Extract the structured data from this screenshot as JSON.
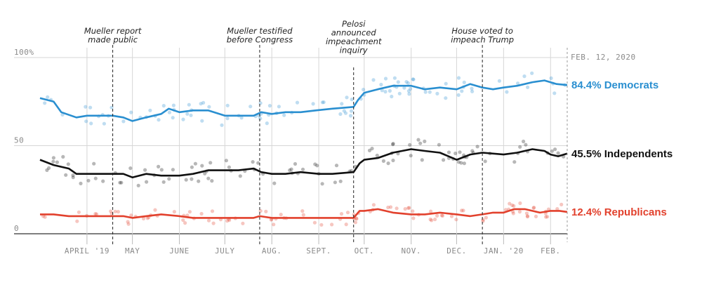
{
  "chart_data": {
    "type": "line",
    "x_range": [
      "2019-03-01",
      "2020-02-12"
    ],
    "y_range": [
      0,
      100
    ],
    "y_ticks": [
      {
        "value": 100,
        "label": "100%"
      },
      {
        "value": 50,
        "label": "50"
      },
      {
        "value": 0,
        "label": "0"
      }
    ],
    "x_ticks": [
      {
        "date": "2019-04-01",
        "label": "APRIL '19"
      },
      {
        "date": "2019-05-01",
        "label": "MAY"
      },
      {
        "date": "2019-06-01",
        "label": "JUNE"
      },
      {
        "date": "2019-07-01",
        "label": "JULY"
      },
      {
        "date": "2019-08-01",
        "label": "AUG."
      },
      {
        "date": "2019-09-01",
        "label": "SEPT."
      },
      {
        "date": "2019-10-01",
        "label": "OCT."
      },
      {
        "date": "2019-11-01",
        "label": "NOV."
      },
      {
        "date": "2019-12-01",
        "label": "DEC."
      },
      {
        "date": "2020-01-01",
        "label": "JAN. '20"
      },
      {
        "date": "2020-02-01",
        "label": "FEB."
      }
    ],
    "date_label": {
      "date": "2020-02-12",
      "label": "FEB. 12, 2020"
    },
    "grid": true,
    "annotations": [
      {
        "date": "2019-04-18",
        "lines": [
          "Mueller report",
          "made public"
        ]
      },
      {
        "date": "2019-07-24",
        "lines": [
          "Mueller testified",
          "before Congress"
        ]
      },
      {
        "date": "2019-09-24",
        "lines": [
          "Pelosi",
          "announced",
          "impeachment",
          "inquiry"
        ]
      },
      {
        "date": "2019-12-18",
        "lines": [
          "House voted to",
          "impeach Trump"
        ]
      }
    ],
    "series": [
      {
        "name": "Democrats",
        "color": "#2a8fd0",
        "label": "84.4% Democrats",
        "points": [
          [
            "2019-03-01",
            77
          ],
          [
            "2019-03-10",
            75
          ],
          [
            "2019-03-15",
            69
          ],
          [
            "2019-03-25",
            66
          ],
          [
            "2019-04-01",
            67
          ],
          [
            "2019-04-18",
            67
          ],
          [
            "2019-04-25",
            66
          ],
          [
            "2019-05-01",
            64
          ],
          [
            "2019-05-10",
            66
          ],
          [
            "2019-05-20",
            68
          ],
          [
            "2019-05-25",
            71
          ],
          [
            "2019-06-01",
            69
          ],
          [
            "2019-06-10",
            70
          ],
          [
            "2019-06-20",
            70
          ],
          [
            "2019-07-01",
            67
          ],
          [
            "2019-07-10",
            67
          ],
          [
            "2019-07-20",
            67
          ],
          [
            "2019-07-25",
            69
          ],
          [
            "2019-08-01",
            68
          ],
          [
            "2019-08-10",
            69
          ],
          [
            "2019-08-20",
            69
          ],
          [
            "2019-08-30",
            70
          ],
          [
            "2019-09-10",
            71
          ],
          [
            "2019-09-24",
            72
          ],
          [
            "2019-09-27",
            76
          ],
          [
            "2019-10-01",
            80
          ],
          [
            "2019-10-10",
            82
          ],
          [
            "2019-10-20",
            84
          ],
          [
            "2019-11-01",
            84
          ],
          [
            "2019-11-10",
            82
          ],
          [
            "2019-11-20",
            83
          ],
          [
            "2019-12-01",
            82
          ],
          [
            "2019-12-10",
            85
          ],
          [
            "2019-12-18",
            83
          ],
          [
            "2019-12-25",
            82
          ],
          [
            "2020-01-01",
            83
          ],
          [
            "2020-01-10",
            84
          ],
          [
            "2020-01-20",
            86
          ],
          [
            "2020-01-28",
            87
          ],
          [
            "2020-02-05",
            85
          ],
          [
            "2020-02-12",
            84.4
          ]
        ]
      },
      {
        "name": "Independents",
        "color": "#111111",
        "label": "45.5% Independents",
        "points": [
          [
            "2019-03-01",
            42
          ],
          [
            "2019-03-10",
            39
          ],
          [
            "2019-03-20",
            37
          ],
          [
            "2019-03-25",
            34
          ],
          [
            "2019-04-01",
            34
          ],
          [
            "2019-04-18",
            34
          ],
          [
            "2019-04-25",
            34
          ],
          [
            "2019-05-01",
            32
          ],
          [
            "2019-05-10",
            34
          ],
          [
            "2019-05-20",
            33
          ],
          [
            "2019-06-01",
            33
          ],
          [
            "2019-06-10",
            34
          ],
          [
            "2019-06-20",
            36
          ],
          [
            "2019-07-01",
            36
          ],
          [
            "2019-07-10",
            36
          ],
          [
            "2019-07-20",
            37
          ],
          [
            "2019-07-25",
            35
          ],
          [
            "2019-08-01",
            34
          ],
          [
            "2019-08-10",
            34
          ],
          [
            "2019-08-20",
            35
          ],
          [
            "2019-09-01",
            34
          ],
          [
            "2019-09-10",
            34
          ],
          [
            "2019-09-24",
            35
          ],
          [
            "2019-09-28",
            40
          ],
          [
            "2019-10-01",
            42
          ],
          [
            "2019-10-10",
            43
          ],
          [
            "2019-10-20",
            46
          ],
          [
            "2019-11-01",
            48
          ],
          [
            "2019-11-10",
            47
          ],
          [
            "2019-11-20",
            46
          ],
          [
            "2019-12-01",
            42
          ],
          [
            "2019-12-10",
            45
          ],
          [
            "2019-12-18",
            46
          ],
          [
            "2020-01-01",
            45
          ],
          [
            "2020-01-10",
            46
          ],
          [
            "2020-01-20",
            48
          ],
          [
            "2020-01-28",
            47
          ],
          [
            "2020-02-01",
            45
          ],
          [
            "2020-02-06",
            44
          ],
          [
            "2020-02-12",
            45.5
          ]
        ]
      },
      {
        "name": "Republicans",
        "color": "#e2412d",
        "label": "12.4% Republicans",
        "points": [
          [
            "2019-03-01",
            11
          ],
          [
            "2019-03-10",
            11
          ],
          [
            "2019-03-20",
            10
          ],
          [
            "2019-04-01",
            10
          ],
          [
            "2019-04-18",
            10
          ],
          [
            "2019-04-25",
            10
          ],
          [
            "2019-05-01",
            9
          ],
          [
            "2019-05-10",
            10
          ],
          [
            "2019-05-20",
            11
          ],
          [
            "2019-06-01",
            10
          ],
          [
            "2019-06-10",
            9
          ],
          [
            "2019-06-20",
            9
          ],
          [
            "2019-07-01",
            9
          ],
          [
            "2019-07-10",
            9
          ],
          [
            "2019-07-20",
            9
          ],
          [
            "2019-07-24",
            10
          ],
          [
            "2019-08-01",
            9
          ],
          [
            "2019-08-10",
            9
          ],
          [
            "2019-08-20",
            9
          ],
          [
            "2019-09-01",
            9
          ],
          [
            "2019-09-10",
            9
          ],
          [
            "2019-09-24",
            9
          ],
          [
            "2019-09-28",
            13
          ],
          [
            "2019-10-01",
            13
          ],
          [
            "2019-10-10",
            14
          ],
          [
            "2019-10-20",
            12
          ],
          [
            "2019-11-01",
            11
          ],
          [
            "2019-11-10",
            11
          ],
          [
            "2019-11-20",
            12
          ],
          [
            "2019-12-01",
            11
          ],
          [
            "2019-12-10",
            10
          ],
          [
            "2019-12-18",
            11
          ],
          [
            "2019-12-25",
            12
          ],
          [
            "2020-01-01",
            12
          ],
          [
            "2020-01-08",
            14
          ],
          [
            "2020-01-15",
            14
          ],
          [
            "2020-01-25",
            12
          ],
          [
            "2020-02-01",
            13
          ],
          [
            "2020-02-07",
            13
          ],
          [
            "2020-02-12",
            12.4
          ]
        ]
      }
    ]
  }
}
